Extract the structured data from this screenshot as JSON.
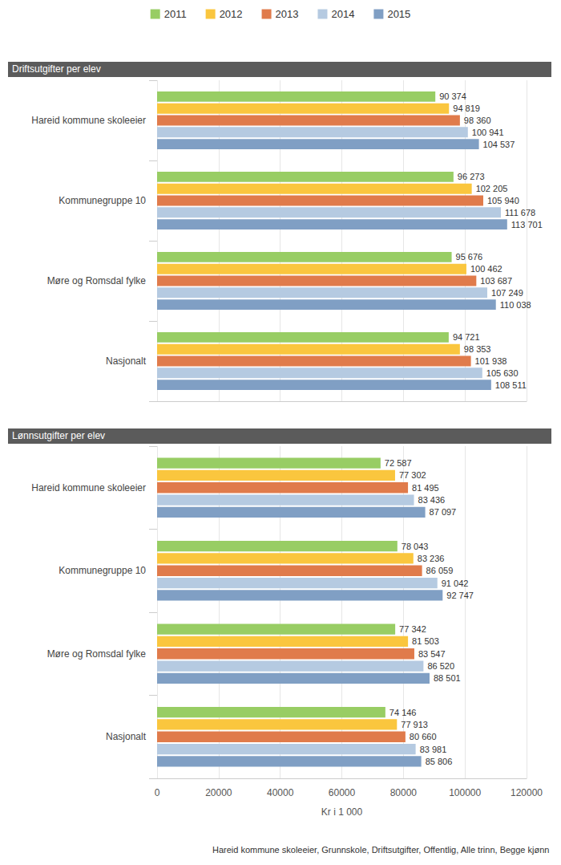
{
  "chart_data": [
    {
      "type": "bar",
      "orientation": "horizontal",
      "title": "Driftsutgifter per elev",
      "categories": [
        "Hareid kommune skoleeier",
        "Kommunegruppe 10",
        "Møre og Romsdal fylke",
        "Nasjonalt"
      ],
      "series": [
        {
          "name": "2011",
          "color": "#98cd64",
          "values": [
            90374,
            96273,
            95676,
            94721
          ],
          "value_labels": [
            "90 374",
            "96 273",
            "95 676",
            "94 721"
          ]
        },
        {
          "name": "2012",
          "color": "#fac63e",
          "values": [
            94819,
            102205,
            100462,
            98353
          ],
          "value_labels": [
            "94 819",
            "102 205",
            "100 462",
            "98 353"
          ]
        },
        {
          "name": "2013",
          "color": "#e07b4b",
          "values": [
            98360,
            105940,
            103687,
            101938
          ],
          "value_labels": [
            "98 360",
            "105 940",
            "103 687",
            "101 938"
          ]
        },
        {
          "name": "2014",
          "color": "#b5cae1",
          "values": [
            100941,
            111678,
            107249,
            105630
          ],
          "value_labels": [
            "100 941",
            "111 678",
            "107 249",
            "105 630"
          ]
        },
        {
          "name": "2015",
          "color": "#809fc4",
          "values": [
            104537,
            113701,
            110038,
            108511
          ],
          "value_labels": [
            "104 537",
            "113 701",
            "110 038",
            "108 511"
          ]
        }
      ],
      "xlim": [
        0,
        120000
      ],
      "xticks": [
        0,
        20000,
        40000,
        60000,
        80000,
        100000,
        120000
      ],
      "grid": true,
      "legend": "top",
      "data_labels": true,
      "tick_labels": "y"
    },
    {
      "type": "bar",
      "orientation": "horizontal",
      "title": "Lønnsutgifter per elev",
      "xlabel": "Kr i 1 000",
      "caption": "Hareid kommune skoleeier, Grunnskole, Driftsutgifter, Offentlig, Alle trinn, Begge kjønn",
      "categories": [
        "Hareid kommune skoleeier",
        "Kommunegruppe 10",
        "Møre og Romsdal fylke",
        "Nasjonalt"
      ],
      "series": [
        {
          "name": "2011",
          "color": "#98cd64",
          "values": [
            72587,
            78043,
            77342,
            74146
          ],
          "value_labels": [
            "72 587",
            "78 043",
            "77 342",
            "74 146"
          ]
        },
        {
          "name": "2012",
          "color": "#fac63e",
          "values": [
            77302,
            83236,
            81503,
            77913
          ],
          "value_labels": [
            "77 302",
            "83 236",
            "81 503",
            "77 913"
          ]
        },
        {
          "name": "2013",
          "color": "#e07b4b",
          "values": [
            81495,
            86059,
            83547,
            80660
          ],
          "value_labels": [
            "81 495",
            "86 059",
            "83 547",
            "80 660"
          ]
        },
        {
          "name": "2014",
          "color": "#b5cae1",
          "values": [
            83436,
            91042,
            86520,
            83981
          ],
          "value_labels": [
            "83 436",
            "91 042",
            "86 520",
            "83 981"
          ]
        },
        {
          "name": "2015",
          "color": "#809fc4",
          "values": [
            87097,
            92747,
            88501,
            85806
          ],
          "value_labels": [
            "87 097",
            "92 747",
            "88 501",
            "85 806"
          ]
        }
      ],
      "xlim": [
        0,
        120000
      ],
      "xticks": [
        0,
        20000,
        40000,
        60000,
        80000,
        100000,
        120000
      ],
      "grid": true,
      "legend": "top",
      "data_labels": true
    }
  ]
}
